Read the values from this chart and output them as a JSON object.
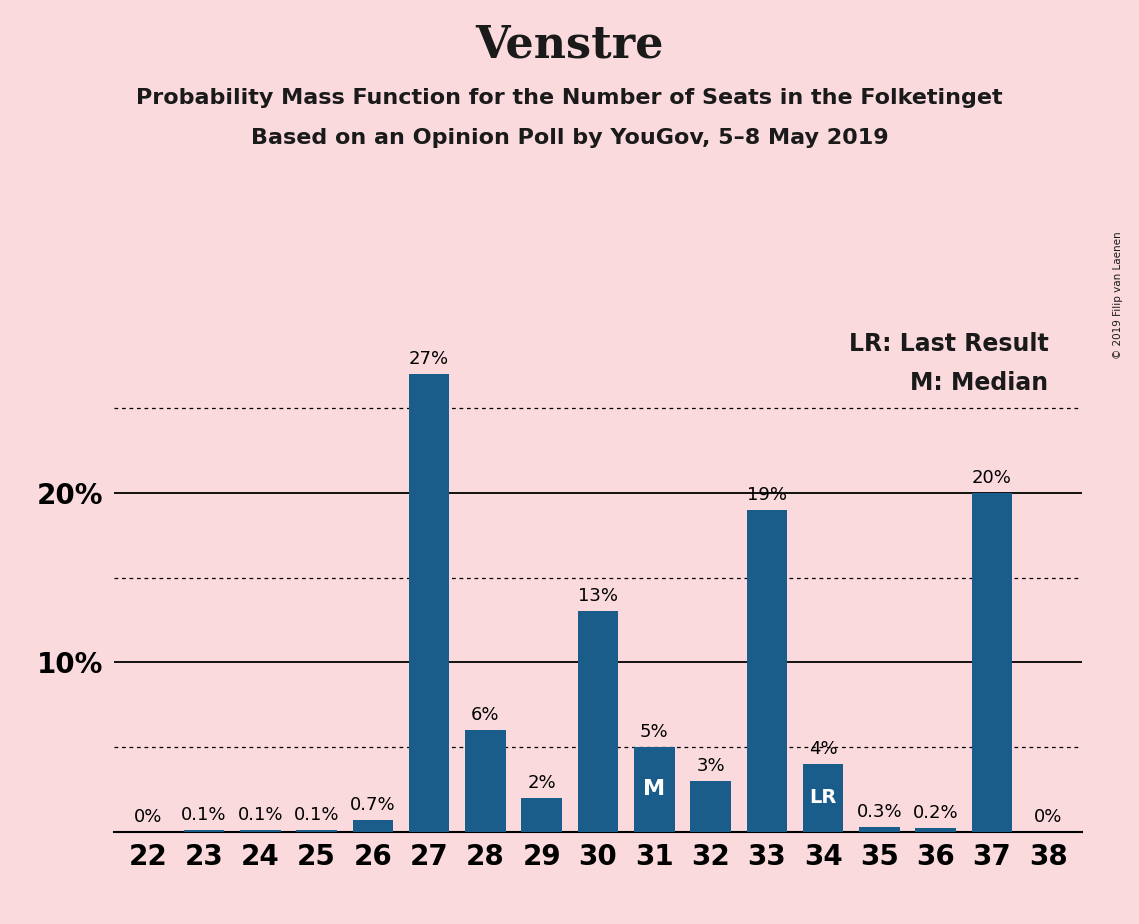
{
  "title": "Venstre",
  "subtitle1": "Probability Mass Function for the Number of Seats in the Folketinget",
  "subtitle2": "Based on an Opinion Poll by YouGov, 5–8 May 2019",
  "seats": [
    22,
    23,
    24,
    25,
    26,
    27,
    28,
    29,
    30,
    31,
    32,
    33,
    34,
    35,
    36,
    37,
    38
  ],
  "values": [
    0.0,
    0.1,
    0.1,
    0.1,
    0.7,
    27.0,
    6.0,
    2.0,
    13.0,
    5.0,
    3.0,
    19.0,
    4.0,
    0.3,
    0.2,
    20.0,
    0.0
  ],
  "labels": [
    "0%",
    "0.1%",
    "0.1%",
    "0.1%",
    "0.7%",
    "27%",
    "6%",
    "2%",
    "13%",
    "5%",
    "3%",
    "19%",
    "4%",
    "0.3%",
    "0.2%",
    "20%",
    "0%"
  ],
  "bar_color": "#1a5c8a",
  "background_color": "#fadadd",
  "median_seat": 31,
  "last_result_seat": 34,
  "legend_text1": "LR: Last Result",
  "legend_text2": "M: Median",
  "copyright": "© 2019 Filip van Laenen",
  "ylim": [
    0,
    30
  ],
  "solid_yticks": [
    10,
    20
  ],
  "dotted_yticks": [
    5,
    15,
    25
  ],
  "title_fontsize": 32,
  "subtitle_fontsize": 16,
  "tick_fontsize": 20,
  "label_fontsize": 13,
  "legend_fontsize": 17
}
